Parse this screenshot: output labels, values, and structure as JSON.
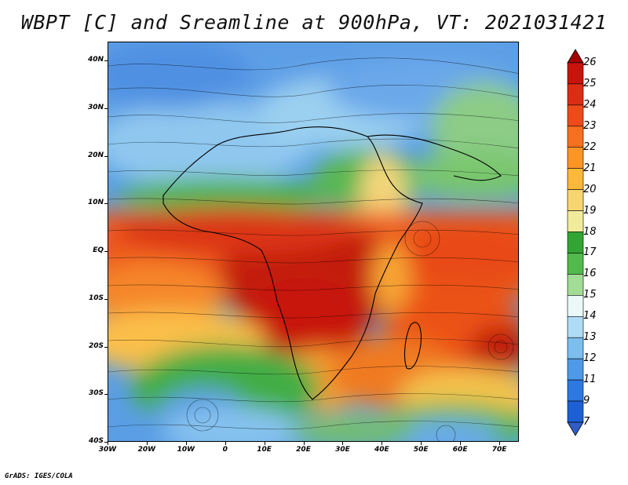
{
  "title": "WBPT [C] and Sreamline at 900hPa, VT: 2021031421",
  "credit": "GrADS: IGES/COLA",
  "map": {
    "lat_labels": [
      "40N",
      "30N",
      "20N",
      "10N",
      "EQ",
      "10S",
      "20S",
      "30S",
      "40S"
    ],
    "lon_labels": [
      "30W",
      "20W",
      "10W",
      "0",
      "10E",
      "20E",
      "30E",
      "40E",
      "50E",
      "60E",
      "70E"
    ],
    "lat_range": [
      -40,
      44
    ],
    "lon_range": [
      -30,
      75
    ]
  },
  "colorbar": {
    "labels": [
      "26",
      "25",
      "24",
      "23",
      "22",
      "21",
      "20",
      "19",
      "18",
      "17",
      "16",
      "15",
      "14",
      "13",
      "12",
      "11",
      "9",
      "7"
    ],
    "colors": [
      "#a50000",
      "#c8140a",
      "#dc2d14",
      "#ee4a1a",
      "#f7701f",
      "#fa9626",
      "#fbb83a",
      "#f7d672",
      "#f1ec9a",
      "#33a535",
      "#52ba4a",
      "#a2dc95",
      "#eaf8f8",
      "#b0dbf4",
      "#7cbeee",
      "#4f9ae6",
      "#2d79e0",
      "#1c60d4",
      "#2e5dc8"
    ]
  }
}
